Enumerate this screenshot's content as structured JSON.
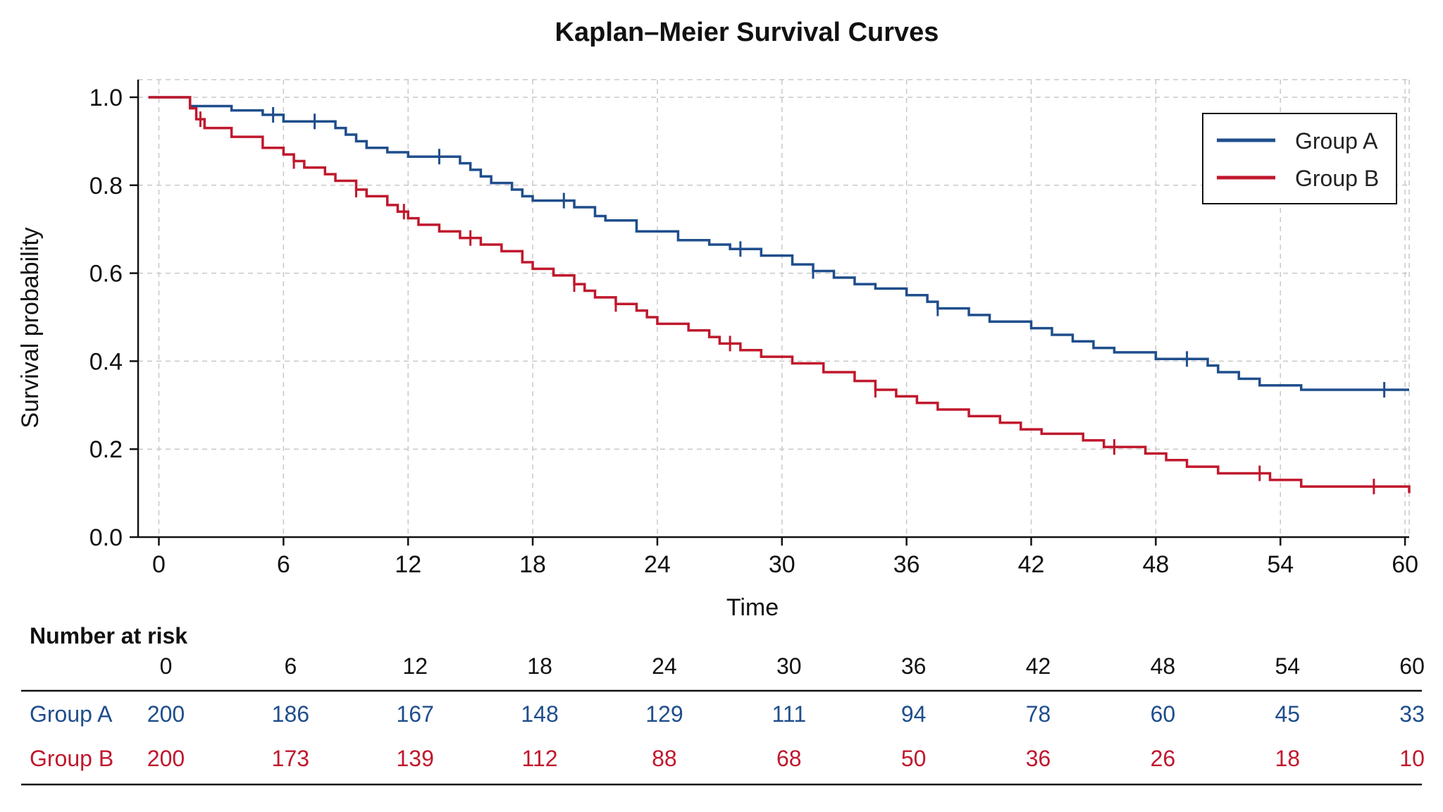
{
  "chart_data": {
    "type": "line",
    "title": "Kaplan–Meier Survival Curves",
    "xlabel": "Time",
    "ylabel": "Survival probability",
    "xlim": [
      -1,
      60.2
    ],
    "ylim": [
      0,
      1.04
    ],
    "x_ticks": [
      0,
      6,
      12,
      18,
      24,
      30,
      36,
      42,
      48,
      54,
      60
    ],
    "x_tick_labels": [
      "0",
      "6",
      "12",
      "18",
      "24",
      "30",
      "36",
      "42",
      "48",
      "54",
      "60"
    ],
    "y_ticks": [
      0.0,
      0.2,
      0.4,
      0.6,
      0.8,
      1.0
    ],
    "y_tick_labels": [
      "0.0",
      "0.2",
      "0.4",
      "0.6",
      "0.8",
      "1.0"
    ],
    "grid": true,
    "legend_position": "top-right",
    "series": [
      {
        "name": "Group A",
        "color": "#1f4e8c",
        "steps": [
          [
            -0.5,
            1.0
          ],
          [
            1.5,
            0.98
          ],
          [
            3.5,
            0.97
          ],
          [
            5.0,
            0.96
          ],
          [
            6.0,
            0.945
          ],
          [
            8.5,
            0.93
          ],
          [
            9.0,
            0.915
          ],
          [
            9.5,
            0.9
          ],
          [
            10.0,
            0.885
          ],
          [
            11.0,
            0.875
          ],
          [
            12.0,
            0.865
          ],
          [
            14.5,
            0.85
          ],
          [
            15.0,
            0.835
          ],
          [
            15.5,
            0.82
          ],
          [
            16.0,
            0.805
          ],
          [
            17.0,
            0.79
          ],
          [
            17.5,
            0.775
          ],
          [
            18.0,
            0.765
          ],
          [
            20.0,
            0.75
          ],
          [
            21.0,
            0.73
          ],
          [
            21.5,
            0.72
          ],
          [
            23.0,
            0.695
          ],
          [
            25.0,
            0.675
          ],
          [
            26.5,
            0.665
          ],
          [
            27.5,
            0.655
          ],
          [
            29.0,
            0.64
          ],
          [
            30.5,
            0.62
          ],
          [
            31.5,
            0.605
          ],
          [
            32.5,
            0.59
          ],
          [
            33.5,
            0.575
          ],
          [
            34.5,
            0.565
          ],
          [
            36.0,
            0.55
          ],
          [
            37.0,
            0.535
          ],
          [
            37.5,
            0.52
          ],
          [
            39.0,
            0.505
          ],
          [
            40.0,
            0.49
          ],
          [
            42.0,
            0.475
          ],
          [
            43.0,
            0.46
          ],
          [
            44.0,
            0.445
          ],
          [
            45.0,
            0.43
          ],
          [
            46.0,
            0.42
          ],
          [
            48.0,
            0.405
          ],
          [
            50.5,
            0.39
          ],
          [
            51.0,
            0.375
          ],
          [
            52.0,
            0.36
          ],
          [
            53.0,
            0.345
          ],
          [
            55.0,
            0.335
          ],
          [
            60.2,
            0.335
          ]
        ],
        "censor_x": [
          5.5,
          7.5,
          13.5,
          19.5,
          28.0,
          31.5,
          37.5,
          49.5,
          59.0
        ]
      },
      {
        "name": "Group B",
        "color": "#c0182d",
        "steps": [
          [
            -0.5,
            1.0
          ],
          [
            1.5,
            0.975
          ],
          [
            1.8,
            0.95
          ],
          [
            2.2,
            0.93
          ],
          [
            3.5,
            0.91
          ],
          [
            5.0,
            0.885
          ],
          [
            6.0,
            0.87
          ],
          [
            6.5,
            0.855
          ],
          [
            7.0,
            0.84
          ],
          [
            8.0,
            0.825
          ],
          [
            8.5,
            0.81
          ],
          [
            9.5,
            0.79
          ],
          [
            10.0,
            0.775
          ],
          [
            11.0,
            0.755
          ],
          [
            11.5,
            0.74
          ],
          [
            12.0,
            0.725
          ],
          [
            12.5,
            0.71
          ],
          [
            13.5,
            0.695
          ],
          [
            14.5,
            0.68
          ],
          [
            15.5,
            0.665
          ],
          [
            16.5,
            0.65
          ],
          [
            17.5,
            0.625
          ],
          [
            18.0,
            0.61
          ],
          [
            19.0,
            0.595
          ],
          [
            20.0,
            0.575
          ],
          [
            20.5,
            0.56
          ],
          [
            21.0,
            0.545
          ],
          [
            22.0,
            0.53
          ],
          [
            23.0,
            0.515
          ],
          [
            23.5,
            0.5
          ],
          [
            24.0,
            0.485
          ],
          [
            25.5,
            0.47
          ],
          [
            26.5,
            0.455
          ],
          [
            27.0,
            0.44
          ],
          [
            28.0,
            0.425
          ],
          [
            29.0,
            0.41
          ],
          [
            30.5,
            0.395
          ],
          [
            32.0,
            0.375
          ],
          [
            33.5,
            0.355
          ],
          [
            34.5,
            0.335
          ],
          [
            35.5,
            0.32
          ],
          [
            36.5,
            0.305
          ],
          [
            37.5,
            0.29
          ],
          [
            39.0,
            0.275
          ],
          [
            40.5,
            0.26
          ],
          [
            41.5,
            0.245
          ],
          [
            42.5,
            0.235
          ],
          [
            44.5,
            0.22
          ],
          [
            45.5,
            0.205
          ],
          [
            47.5,
            0.19
          ],
          [
            48.5,
            0.175
          ],
          [
            49.5,
            0.16
          ],
          [
            51.0,
            0.145
          ],
          [
            53.5,
            0.13
          ],
          [
            55.0,
            0.115
          ],
          [
            60.2,
            0.1
          ]
        ],
        "censor_x": [
          2.0,
          6.5,
          9.5,
          11.8,
          15.0,
          20.0,
          22.0,
          27.5,
          34.5,
          46.0,
          53.0,
          58.5
        ]
      }
    ],
    "risk_table": {
      "title": "Number at risk",
      "times": [
        "0",
        "6",
        "12",
        "18",
        "24",
        "30",
        "36",
        "42",
        "48",
        "54",
        "60"
      ],
      "rows": [
        {
          "name": "Group A",
          "color": "#1f4e8c",
          "values": [
            "200",
            "186",
            "167",
            "148",
            "129",
            "111",
            "94",
            "78",
            "60",
            "45",
            "33"
          ]
        },
        {
          "name": "Group B",
          "color": "#c0182d",
          "values": [
            "200",
            "173",
            "139",
            "112",
            "88",
            "68",
            "50",
            "36",
            "26",
            "18",
            "10"
          ]
        }
      ]
    }
  }
}
